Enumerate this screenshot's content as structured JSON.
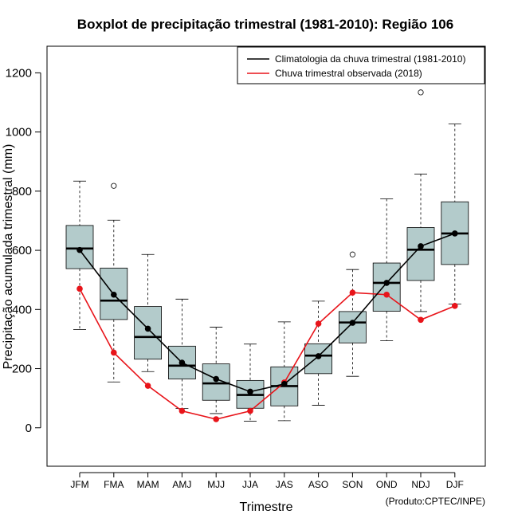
{
  "chart_data": {
    "type": "boxplot",
    "title": "Boxplot de precipitação trimestral (1981-2010): Região 106",
    "xlabel": "Trimestre",
    "ylabel": "Precipitação acumulada trimestral (mm)",
    "credit": "(Produto:CPTEC/INPE)",
    "ylim": [
      -130,
      1290
    ],
    "yticks": [
      0,
      200,
      400,
      600,
      800,
      1000,
      1200
    ],
    "categories": [
      "JFM",
      "FMA",
      "MAM",
      "AMJ",
      "MJJ",
      "JJA",
      "JAS",
      "ASO",
      "SON",
      "OND",
      "NDJ",
      "DJF"
    ],
    "boxes": [
      {
        "min": 332,
        "q1": 538,
        "median": 606,
        "q3": 684,
        "max": 834,
        "outliers": []
      },
      {
        "min": 155,
        "q1": 366,
        "median": 430,
        "q3": 540,
        "max": 702,
        "outliers": [
          818
        ]
      },
      {
        "min": 190,
        "q1": 232,
        "median": 307,
        "q3": 410,
        "max": 586,
        "outliers": []
      },
      {
        "min": 65,
        "q1": 165,
        "median": 210,
        "q3": 276,
        "max": 435,
        "outliers": []
      },
      {
        "min": 48,
        "q1": 93,
        "median": 150,
        "q3": 216,
        "max": 340,
        "outliers": []
      },
      {
        "min": 22,
        "q1": 66,
        "median": 111,
        "q3": 160,
        "max": 283,
        "outliers": []
      },
      {
        "min": 24,
        "q1": 74,
        "median": 141,
        "q3": 206,
        "max": 358,
        "outliers": []
      },
      {
        "min": 76,
        "q1": 183,
        "median": 244,
        "q3": 284,
        "max": 428,
        "outliers": []
      },
      {
        "min": 174,
        "q1": 287,
        "median": 356,
        "q3": 393,
        "max": 535,
        "outliers": [
          586
        ]
      },
      {
        "min": 294,
        "q1": 394,
        "median": 490,
        "q3": 557,
        "max": 774,
        "outliers": []
      },
      {
        "min": 393,
        "q1": 498,
        "median": 602,
        "q3": 677,
        "max": 858,
        "outliers": [
          1134
        ]
      },
      {
        "min": 418,
        "q1": 552,
        "median": 657,
        "q3": 764,
        "max": 1027,
        "outliers": []
      }
    ],
    "series": [
      {
        "name": "Climatologia da chuva trimestral (1981-2010)",
        "color": "#000000",
        "values": [
          601,
          450,
          335,
          220,
          165,
          122,
          148,
          242,
          355,
          490,
          614,
          657
        ]
      },
      {
        "name": "Chuva trimestral observada (2018)",
        "color": "#e8141a",
        "values": [
          470,
          254,
          142,
          57,
          29,
          57,
          153,
          352,
          457,
          450,
          365,
          412
        ]
      }
    ],
    "box_fill": "#b3cbcb",
    "legend_position": "top-right"
  }
}
